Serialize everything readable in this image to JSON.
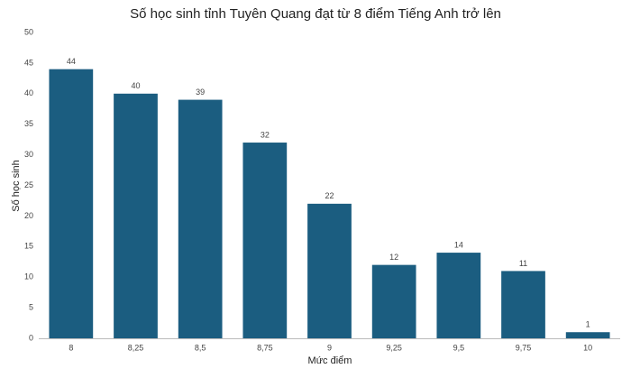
{
  "chart_data": {
    "type": "bar",
    "title": "Số học sinh tỉnh Tuyên Quang đạt từ 8 điểm Tiếng Anh trở lên",
    "x_label": "Mức điểm",
    "y_label": "Số học sinh",
    "categories": [
      "8",
      "8,25",
      "8,5",
      "8,75",
      "9",
      "9,25",
      "9,5",
      "9,75",
      "10"
    ],
    "values": [
      44,
      40,
      39,
      32,
      22,
      12,
      14,
      11,
      1
    ],
    "color": "#1b5d80",
    "ylim": [
      0,
      50
    ],
    "yticks": [
      0,
      5,
      10,
      15,
      20,
      25,
      30,
      35,
      40,
      45,
      50
    ],
    "grid": false
  }
}
